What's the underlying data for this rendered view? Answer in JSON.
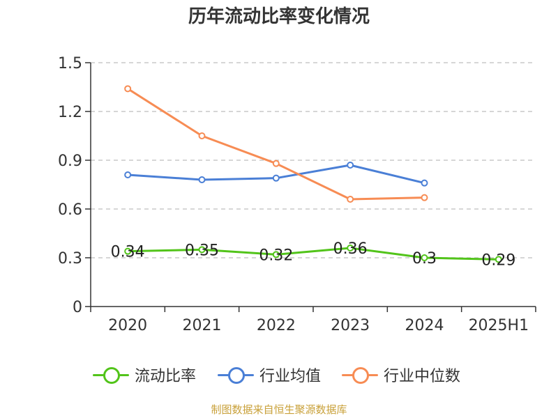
{
  "chart_data": {
    "type": "line",
    "title": "历年流动比率变化情况",
    "categories": [
      "2020",
      "2021",
      "2022",
      "2023",
      "2024",
      "2025H1"
    ],
    "ylim": [
      0,
      1.5
    ],
    "yticks": [
      "0",
      "0.3",
      "0.6",
      "0.9",
      "1.2",
      "1.5"
    ],
    "grid": true,
    "legend_position": "bottom",
    "series": [
      {
        "name": "流动比率",
        "color": "#52c41a",
        "values": [
          0.34,
          0.35,
          0.32,
          0.36,
          0.3,
          0.29
        ],
        "labels": [
          "0.34",
          "0.35",
          "0.32",
          "0.36",
          "0.3",
          "0.29"
        ],
        "show_labels": true
      },
      {
        "name": "行业均值",
        "color": "#4a7fd6",
        "values": [
          0.81,
          0.78,
          0.79,
          0.87,
          0.76,
          null
        ],
        "show_labels": false
      },
      {
        "name": "行业中位数",
        "color": "#f78c54",
        "values": [
          1.34,
          1.05,
          0.88,
          0.66,
          0.67,
          null
        ],
        "show_labels": false
      }
    ]
  },
  "footer": {
    "source": "制图数据来自恒生聚源数据库"
  }
}
